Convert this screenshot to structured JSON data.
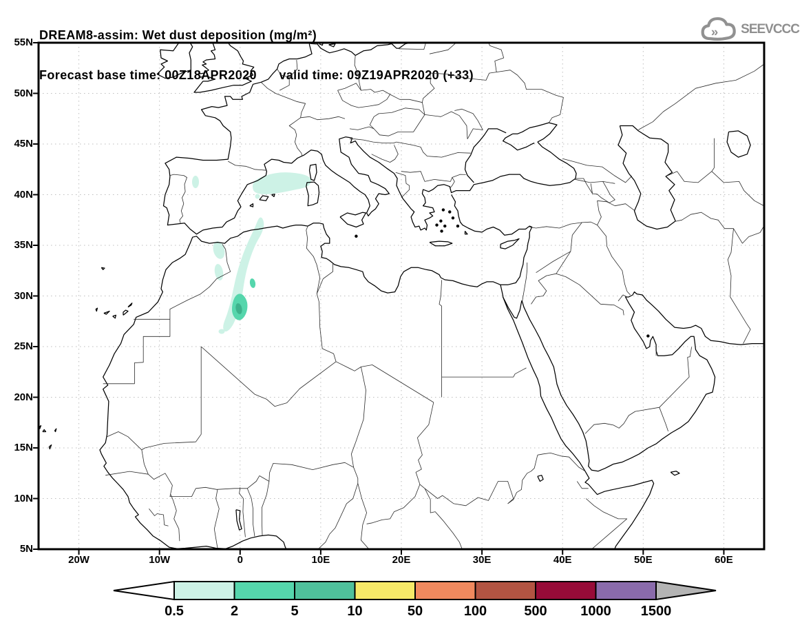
{
  "header": {
    "title_line1": "DREAM8-assim: Wet dust deposition (mg/m²)",
    "title_line2": "Forecast base time: 00Z18APR2020      valid time: 09Z19APR2020 (+33)"
  },
  "logo": {
    "text": "SEEVCCC",
    "icon": "cloud-icon",
    "color": "#8f8f8f"
  },
  "axes": {
    "lat_labels": [
      "55N",
      "50N",
      "45N",
      "40N",
      "35N",
      "30N",
      "25N",
      "20N",
      "15N",
      "10N",
      "5N"
    ],
    "lon_labels": [
      "20W",
      "10W",
      "0",
      "10E",
      "20E",
      "30E",
      "40E",
      "50E",
      "60E"
    ]
  },
  "colorbar": {
    "tick_labels": [
      "0.5",
      "2",
      "5",
      "10",
      "50",
      "100",
      "500",
      "1000",
      "1500"
    ],
    "cell_colors": [
      "#cdf2e6",
      "#55d6ac",
      "#4fc09b",
      "#f6e968",
      "#f0895e",
      "#b25442",
      "#970b38",
      "#8a6bab"
    ],
    "underflow_color": "#ffffff",
    "overflow_color": "#b4b4b4"
  },
  "chart_data": {
    "type": "heatmap",
    "title": "DREAM8-assim: Wet dust deposition (mg/m²)",
    "subtitle": "Forecast base time: 00Z18APR2020  valid time: 09Z19APR2020 (+33)",
    "model": "DREAM8-assim",
    "variable": "Wet dust deposition",
    "units": "mg/m²",
    "forecast_base_time": "00Z18APR2020",
    "valid_time": "09Z19APR2020",
    "forecast_hour": "+33",
    "map_extent": {
      "lon": [
        -25,
        65
      ],
      "lat": [
        5,
        55
      ]
    },
    "x_ticks": [
      "20W",
      "10W",
      "0",
      "10E",
      "20E",
      "30E",
      "40E",
      "50E",
      "60E"
    ],
    "y_ticks": [
      "5N",
      "10N",
      "15N",
      "20N",
      "25N",
      "30N",
      "35N",
      "40N",
      "45N",
      "50N",
      "55N"
    ],
    "grid": true,
    "legend_position": "bottom",
    "color_levels": [
      0.5,
      2,
      5,
      10,
      50,
      100,
      500,
      1000,
      1500
    ],
    "level_colors": [
      "#ffffff",
      "#cdf2e6",
      "#55d6ac",
      "#4fc09b",
      "#f6e968",
      "#f0895e",
      "#b25442",
      "#970b38",
      "#8a6bab",
      "#b4b4b4"
    ],
    "data_regions": [
      {
        "area": "Balearic Sea / NE Spain coast",
        "lon_range": [
          1.5,
          8.7
        ],
        "lat_range": [
          40.2,
          42.3
        ],
        "deposition_mg_m2": "0.5–2"
      },
      {
        "area": "NE Morocco",
        "lon_range": [
          -3.3,
          -2.0
        ],
        "lat_range": [
          32.3,
          35.2
        ],
        "deposition_mg_m2": "0.5–2"
      },
      {
        "area": "NW Algeria elongated band",
        "lon_range": [
          -2.0,
          3.0
        ],
        "lat_range": [
          26.5,
          37.7
        ],
        "deposition_mg_m2": "0.5–2"
      },
      {
        "area": "W Algeria band core near 29N",
        "lon_range": [
          -1.0,
          0.8
        ],
        "lat_range": [
          27.5,
          30.8
        ],
        "deposition_mg_m2": "2–5"
      },
      {
        "area": "W Algeria innermost core ~28.8N",
        "lon_range": [
          -0.5,
          0.2
        ],
        "lat_range": [
          28.2,
          29.5
        ],
        "deposition_mg_m2": "5–10"
      }
    ]
  }
}
